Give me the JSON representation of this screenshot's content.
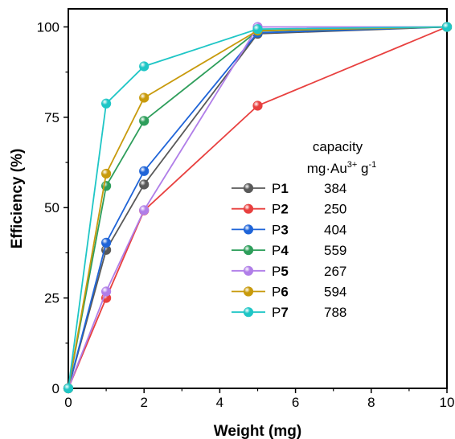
{
  "chart_data": {
    "type": "line",
    "title": "",
    "xlabel": "Weight (mg)",
    "ylabel": "Efficiency (%)",
    "xlim": [
      0,
      10
    ],
    "ylim": [
      0,
      105
    ],
    "x_ticks": [
      0,
      2,
      4,
      6,
      8,
      10
    ],
    "y_ticks": [
      0,
      25,
      50,
      75,
      100
    ],
    "grid": false,
    "legend_position": "center-right",
    "legend_header": [
      "capacity",
      "mg·Au",
      "3+",
      " g",
      "-1"
    ],
    "x": [
      0,
      1,
      2,
      5,
      10
    ],
    "series": [
      {
        "name": "P1",
        "prefix": "P",
        "suffix": "1",
        "capacity": "384",
        "color": "#595959",
        "values": [
          0,
          38.3,
          56.4,
          98.1,
          100
        ]
      },
      {
        "name": "P2",
        "prefix": "P",
        "suffix": "2",
        "capacity": "250",
        "color": "#e8403f",
        "values": [
          0,
          25.0,
          49.2,
          78.2,
          100
        ]
      },
      {
        "name": "P3",
        "prefix": "P",
        "suffix": "3",
        "capacity": "404",
        "color": "#1f64d8",
        "values": [
          0,
          40.3,
          60.1,
          98.4,
          100
        ]
      },
      {
        "name": "P4",
        "prefix": "P",
        "suffix": "4",
        "capacity": "559",
        "color": "#2e9e5b",
        "values": [
          0,
          56.0,
          74.0,
          98.9,
          100
        ]
      },
      {
        "name": "P5",
        "prefix": "P",
        "suffix": "5",
        "capacity": "267",
        "color": "#b07ee8",
        "values": [
          0,
          26.8,
          49.3,
          100,
          100
        ]
      },
      {
        "name": "P6",
        "prefix": "P",
        "suffix": "6",
        "capacity": "594",
        "color": "#c89a0c",
        "values": [
          0,
          59.4,
          80.4,
          99.0,
          100
        ]
      },
      {
        "name": "P7",
        "prefix": "P",
        "suffix": "7",
        "capacity": "788",
        "color": "#1fc6c6",
        "values": [
          0,
          78.8,
          89.1,
          99.4,
          100
        ]
      }
    ]
  }
}
